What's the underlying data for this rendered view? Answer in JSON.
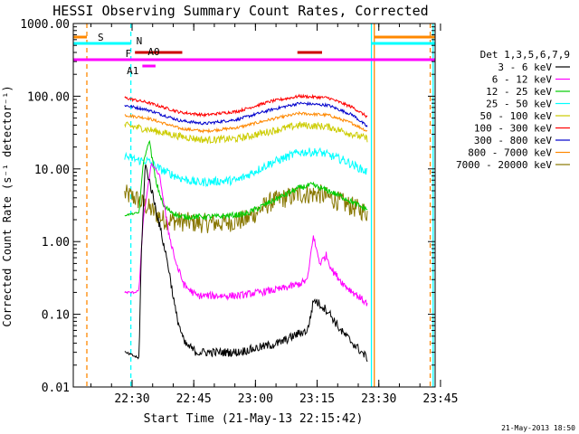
{
  "chart_data": {
    "type": "line",
    "title": "HESSI Observing Summary Count Rates, Corrected",
    "xlabel": "Start Time (21-May-13 22:15:42)",
    "ylabel": "Corrected Count Rate (s⁻¹ detector⁻¹)",
    "x_unit": "minutes after 22:15:42",
    "xlim": [
      0,
      88
    ],
    "ylim": [
      0.01,
      1000
    ],
    "yscale": "log",
    "x_ticks": [
      {
        "x": 14.3,
        "label": "22:30"
      },
      {
        "x": 29.3,
        "label": "22:45"
      },
      {
        "x": 44.3,
        "label": "23:00"
      },
      {
        "x": 59.3,
        "label": "23:15"
      },
      {
        "x": 74.3,
        "label": "23:30"
      },
      {
        "x": 89.3,
        "label": "23:45"
      }
    ],
    "y_ticks": [
      {
        "y": 1000,
        "label": "1000.00"
      },
      {
        "y": 100,
        "label": "100.00"
      },
      {
        "y": 10,
        "label": "10.00"
      },
      {
        "y": 1,
        "label": "1.00"
      },
      {
        "y": 0.1,
        "label": "0.10"
      },
      {
        "y": 0.01,
        "label": "0.01"
      }
    ],
    "legend_title": "Det 1,3,5,6,7,9",
    "legend_position": "right",
    "data_range_x": [
      12.5,
      71.5
    ],
    "series": [
      {
        "name": "3 - 6 keV",
        "color": "#000000",
        "noise": 0.06,
        "noise_after": 18,
        "points": [
          [
            12.5,
            0.03
          ],
          [
            16,
            0.025
          ],
          [
            16.5,
            0.6
          ],
          [
            17.5,
            12
          ],
          [
            20,
            3
          ],
          [
            23,
            0.5
          ],
          [
            25,
            0.1
          ],
          [
            27,
            0.04
          ],
          [
            30,
            0.03
          ],
          [
            40,
            0.03
          ],
          [
            50,
            0.04
          ],
          [
            55,
            0.055
          ],
          [
            57,
            0.06
          ],
          [
            58.5,
            0.16
          ],
          [
            62,
            0.11
          ],
          [
            65,
            0.06
          ],
          [
            68,
            0.04
          ],
          [
            71.5,
            0.025
          ]
        ]
      },
      {
        "name": "6 - 12 keV",
        "color": "#ff00ff",
        "noise": 0.05,
        "noise_after": 22,
        "points": [
          [
            12.5,
            0.2
          ],
          [
            15,
            0.2
          ],
          [
            16,
            0.22
          ],
          [
            17,
            2
          ],
          [
            19,
            12
          ],
          [
            21,
            8
          ],
          [
            23,
            1.5
          ],
          [
            25,
            0.5
          ],
          [
            27,
            0.25
          ],
          [
            30,
            0.18
          ],
          [
            40,
            0.18
          ],
          [
            50,
            0.22
          ],
          [
            55,
            0.26
          ],
          [
            57,
            0.3
          ],
          [
            58.3,
            1.2
          ],
          [
            60,
            0.5
          ],
          [
            61.5,
            0.65
          ],
          [
            63,
            0.4
          ],
          [
            66,
            0.25
          ],
          [
            71.5,
            0.14
          ]
        ]
      },
      {
        "name": "12 - 25 keV",
        "color": "#00cc00",
        "noise": 0.04,
        "noise_after": 19,
        "points": [
          [
            12.5,
            2.3
          ],
          [
            16,
            2.5
          ],
          [
            17,
            12
          ],
          [
            18.5,
            25
          ],
          [
            20,
            7
          ],
          [
            22,
            3
          ],
          [
            26,
            2.2
          ],
          [
            35,
            2.2
          ],
          [
            42,
            2.4
          ],
          [
            50,
            4
          ],
          [
            55,
            5.5
          ],
          [
            58,
            6
          ],
          [
            62,
            5
          ],
          [
            66,
            4
          ],
          [
            70,
            3
          ],
          [
            71.5,
            2.8
          ]
        ]
      },
      {
        "name": "25 - 50 keV",
        "color": "#00ffff",
        "noise": 0.06,
        "noise_after": 0,
        "points": [
          [
            12.5,
            15
          ],
          [
            16,
            13
          ],
          [
            18,
            13
          ],
          [
            21,
            10
          ],
          [
            26,
            7.5
          ],
          [
            30,
            6.5
          ],
          [
            40,
            7
          ],
          [
            48,
            12
          ],
          [
            55,
            17
          ],
          [
            60,
            17
          ],
          [
            66,
            13
          ],
          [
            71.5,
            9
          ]
        ]
      },
      {
        "name": "50 - 100 keV",
        "color": "#cccc00",
        "noise": 0.05,
        "noise_after": 0,
        "points": [
          [
            12.5,
            40
          ],
          [
            18,
            35
          ],
          [
            26,
            28
          ],
          [
            32,
            25
          ],
          [
            40,
            26
          ],
          [
            48,
            33
          ],
          [
            55,
            40
          ],
          [
            62,
            38
          ],
          [
            68,
            30
          ],
          [
            71.5,
            26
          ]
        ]
      },
      {
        "name": "100 - 300 keV",
        "color": "#ff0000",
        "noise": 0.02,
        "noise_after": 0,
        "points": [
          [
            12.5,
            95
          ],
          [
            18,
            82
          ],
          [
            26,
            60
          ],
          [
            32,
            55
          ],
          [
            40,
            62
          ],
          [
            48,
            85
          ],
          [
            55,
            100
          ],
          [
            62,
            95
          ],
          [
            68,
            70
          ],
          [
            71.5,
            52
          ]
        ]
      },
      {
        "name": "300 - 800 keV",
        "color": "#0000cc",
        "noise": 0.02,
        "noise_after": 0,
        "points": [
          [
            12.5,
            75
          ],
          [
            18,
            65
          ],
          [
            26,
            46
          ],
          [
            32,
            42
          ],
          [
            40,
            48
          ],
          [
            48,
            65
          ],
          [
            55,
            80
          ],
          [
            62,
            75
          ],
          [
            68,
            55
          ],
          [
            71.5,
            38
          ]
        ]
      },
      {
        "name": "800 - 7000 keV",
        "color": "#ff8800",
        "noise": 0.02,
        "noise_after": 0,
        "points": [
          [
            12.5,
            55
          ],
          [
            18,
            50
          ],
          [
            26,
            36
          ],
          [
            32,
            33
          ],
          [
            40,
            37
          ],
          [
            48,
            48
          ],
          [
            55,
            58
          ],
          [
            62,
            55
          ],
          [
            68,
            42
          ],
          [
            71.5,
            33
          ]
        ]
      },
      {
        "name": "7000 - 20000 keV",
        "color": "#887700",
        "noise": 0.14,
        "noise_after": 0,
        "points": [
          [
            12.5,
            4.5
          ],
          [
            15,
            4
          ],
          [
            18,
            3
          ],
          [
            22,
            2
          ],
          [
            30,
            1.8
          ],
          [
            36,
            1.8
          ],
          [
            42,
            2
          ],
          [
            48,
            3.5
          ],
          [
            55,
            4.5
          ],
          [
            60,
            4.5
          ],
          [
            65,
            3.5
          ],
          [
            71.5,
            2.5
          ]
        ]
      }
    ],
    "vertical_lines": [
      {
        "x": 3.3,
        "color": "#ff8800",
        "style": "dashed"
      },
      {
        "x": 14.0,
        "color": "#00ffff",
        "style": "dashed"
      },
      {
        "x": 72.5,
        "color": "#00ffff",
        "style": "solid"
      },
      {
        "x": 73.2,
        "color": "#ff8800",
        "style": "solid"
      },
      {
        "x": 86.8,
        "color": "#ff8800",
        "style": "dashed"
      },
      {
        "x": 87.5,
        "color": "#00ffff",
        "style": "solid"
      }
    ],
    "flag_bars": [
      {
        "label": "S",
        "color": "#ff8800",
        "segments": [
          [
            0,
            3.3
          ],
          [
            73.2,
            88
          ]
        ]
      },
      {
        "label": "N",
        "color": "#00ffff",
        "segments": [
          [
            0,
            14
          ],
          [
            72.5,
            88
          ]
        ]
      },
      {
        "label": "F",
        "color": "#cc0000",
        "segments": [
          [
            15,
            26.5
          ],
          [
            54.5,
            60.5
          ]
        ]
      },
      {
        "label": "A0",
        "color": "#ff00ff",
        "segments": [
          [
            0,
            88
          ]
        ]
      },
      {
        "label": "A1",
        "color": "#ff00ff",
        "segments": [
          [
            16.8,
            20
          ]
        ]
      }
    ]
  },
  "footer_date": "21-May-2013 18:50"
}
